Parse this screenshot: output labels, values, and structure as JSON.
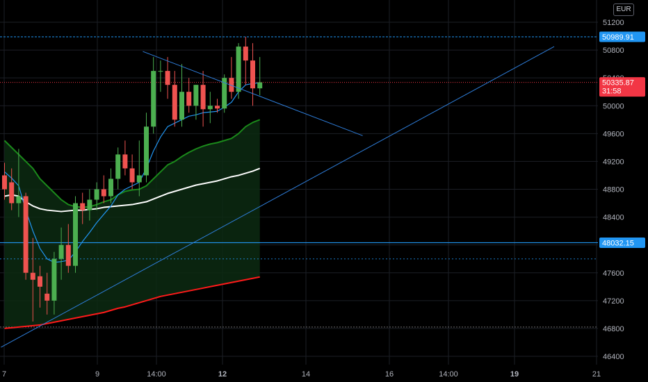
{
  "currency_label": "EUR",
  "colors": {
    "background": "#000000",
    "grid": "#1c1f26",
    "up": "#26a69a",
    "up_body": "#4caf50",
    "down": "#ef5350",
    "trendline": "#2962ff",
    "hline": "#2196f3",
    "ema_fast": "#2196f3",
    "ema_mid": "#1b8a1b",
    "ema_slow": "#ffffff",
    "ema_long": "#ff1a1a",
    "current_price": "#f23645"
  },
  "chart_data": {
    "type": "candlestick",
    "y_ticks": [
      51200,
      50800,
      50400,
      50000,
      49600,
      49200,
      48800,
      48400,
      48000,
      47600,
      47200,
      46800,
      46400
    ],
    "x_ticks": [
      {
        "label": "7",
        "bold": false
      },
      {
        "label": "9",
        "bold": false
      },
      {
        "label": "14:00",
        "bold": false
      },
      {
        "label": "12",
        "bold": true
      },
      {
        "label": "14",
        "bold": false
      },
      {
        "label": "16",
        "bold": false
      },
      {
        "label": "14:00",
        "bold": false
      },
      {
        "label": "19",
        "bold": true
      },
      {
        "label": "21",
        "bold": false
      }
    ],
    "ylim": [
      46300,
      51400
    ],
    "candles": [
      [
        49000,
        49180,
        48650,
        48800
      ],
      [
        48900,
        49100,
        48500,
        48600
      ],
      [
        48600,
        49380,
        48400,
        48700
      ],
      [
        48700,
        48750,
        47500,
        47600
      ],
      [
        47600,
        48100,
        46900,
        47500
      ],
      [
        47550,
        47700,
        47100,
        47400
      ],
      [
        47300,
        47600,
        47000,
        47200
      ],
      [
        47200,
        47900,
        47000,
        47800
      ],
      [
        47800,
        48250,
        47500,
        48000
      ],
      [
        48000,
        48300,
        47600,
        47700
      ],
      [
        47700,
        48700,
        47600,
        48600
      ],
      [
        48600,
        48750,
        48300,
        48500
      ],
      [
        48500,
        48800,
        48350,
        48650
      ],
      [
        48650,
        48900,
        48500,
        48800
      ],
      [
        48800,
        49000,
        48600,
        48700
      ],
      [
        48700,
        49100,
        48600,
        48950
      ],
      [
        48950,
        49400,
        48800,
        49300
      ],
      [
        49300,
        49500,
        49000,
        49100
      ],
      [
        49100,
        49300,
        48800,
        48900
      ],
      [
        48900,
        49500,
        48700,
        49000
      ],
      [
        49000,
        49900,
        48900,
        49700
      ],
      [
        49700,
        50700,
        49600,
        50500
      ],
      [
        50500,
        50650,
        50200,
        50500
      ],
      [
        50500,
        50700,
        50100,
        50300
      ],
      [
        50300,
        50500,
        49700,
        49800
      ],
      [
        49800,
        50600,
        49700,
        50200
      ],
      [
        50200,
        50400,
        49900,
        50000
      ],
      [
        50000,
        50300,
        49800,
        50300
      ],
      [
        50300,
        50500,
        49700,
        49950
      ],
      [
        49950,
        50200,
        49750,
        50000
      ],
      [
        50000,
        50100,
        49900,
        49960
      ],
      [
        49960,
        50450,
        49900,
        50400
      ],
      [
        50400,
        50700,
        50100,
        50200
      ],
      [
        50200,
        50900,
        50100,
        50850
      ],
      [
        50850,
        50990,
        50300,
        50650
      ],
      [
        50650,
        50900,
        50000,
        50250
      ],
      [
        50250,
        50700,
        50150,
        50336
      ]
    ],
    "ema_fast": [
      49050,
      48960,
      48850,
      48500,
      48200,
      47950,
      47800,
      47750,
      47760,
      47780,
      47900,
      48050,
      48180,
      48320,
      48440,
      48560,
      48720,
      48800,
      48850,
      48900,
      49100,
      49350,
      49550,
      49700,
      49750,
      49800,
      49850,
      49870,
      49900,
      49910,
      49920,
      49980,
      50050,
      50200,
      50300,
      50320,
      50330
    ],
    "ema_mid": [
      49500,
      49400,
      49300,
      49200,
      49100,
      48950,
      48850,
      48750,
      48650,
      48580,
      48550,
      48540,
      48550,
      48580,
      48620,
      48650,
      48720,
      48770,
      48790,
      48800,
      48850,
      48950,
      49050,
      49150,
      49200,
      49270,
      49330,
      49380,
      49420,
      49450,
      49470,
      49500,
      49530,
      49600,
      49700,
      49760,
      49800
    ],
    "ema_slow": [
      48700,
      48720,
      48700,
      48620,
      48560,
      48520,
      48500,
      48490,
      48480,
      48490,
      48500,
      48500,
      48510,
      48520,
      48540,
      48550,
      48560,
      48570,
      48580,
      48600,
      48620,
      48660,
      48700,
      48740,
      48770,
      48800,
      48830,
      48860,
      48880,
      48900,
      48920,
      48950,
      48980,
      49000,
      49030,
      49060,
      49100
    ],
    "ema_long": [
      46800,
      46810,
      46820,
      46830,
      46840,
      46850,
      46870,
      46890,
      46910,
      46930,
      46950,
      46970,
      46990,
      47010,
      47030,
      47060,
      47090,
      47110,
      47140,
      47170,
      47200,
      47230,
      47260,
      47280,
      47300,
      47320,
      47340,
      47360,
      47380,
      47400,
      47420,
      47440,
      47460,
      47480,
      47500,
      47520,
      47540
    ],
    "resistance_level": 50989.91,
    "support_level": 48032.15,
    "dotted_level": 47800,
    "low_level": 46820,
    "current_price": 50335.87,
    "countdown": "31:58",
    "price_labels": {
      "resistance": "50989.91",
      "support": "48032.15",
      "current": "50335.87"
    },
    "trendlines": [
      {
        "from": [
          19.5,
          50780
        ],
        "to": [
          50.5,
          49570
        ]
      },
      {
        "from": [
          -0.5,
          46530
        ],
        "to": [
          77.5,
          50850
        ]
      }
    ],
    "grid": true
  }
}
